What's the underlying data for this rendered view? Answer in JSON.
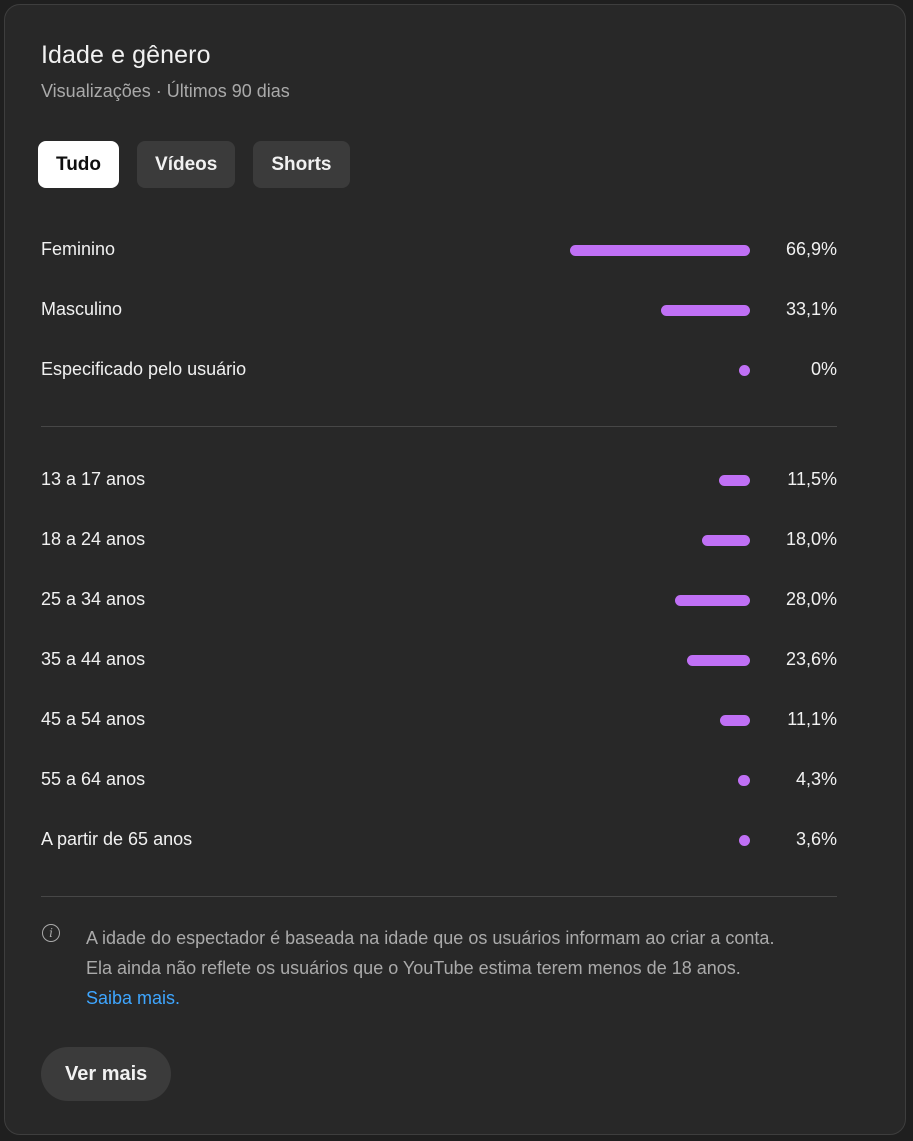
{
  "header": {
    "title": "Idade e gênero",
    "subtitle": "Visualizações · Últimos 90 dias"
  },
  "tabs": [
    {
      "label": "Tudo",
      "active": true
    },
    {
      "label": "Vídeos",
      "active": false
    },
    {
      "label": "Shorts",
      "active": false
    }
  ],
  "gender": [
    {
      "label": "Feminino",
      "value": "66,9%",
      "percent": 66.9
    },
    {
      "label": "Masculino",
      "value": "33,1%",
      "percent": 33.1
    },
    {
      "label": "Especificado pelo usuário",
      "value": "0%",
      "percent": 0
    }
  ],
  "age": [
    {
      "label": "13 a 17 anos",
      "value": "11,5%",
      "percent": 11.5
    },
    {
      "label": "18 a 24 anos",
      "value": "18,0%",
      "percent": 18.0
    },
    {
      "label": "25 a 34 anos",
      "value": "28,0%",
      "percent": 28.0
    },
    {
      "label": "35 a 44 anos",
      "value": "23,6%",
      "percent": 23.6
    },
    {
      "label": "45 a 54 anos",
      "value": "11,1%",
      "percent": 11.1
    },
    {
      "label": "55 a 64 anos",
      "value": "4,3%",
      "percent": 4.3
    },
    {
      "label": "A partir de 65 anos",
      "value": "3,6%",
      "percent": 3.6
    }
  ],
  "note": {
    "line1": "A idade do espectador é baseada na idade que os usuários informam ao criar a conta.",
    "line2": "Ela ainda não reflete os usuários que o YouTube estima terem menos de 18 anos.",
    "link": "Saiba mais."
  },
  "more_button": "Ver mais",
  "colors": {
    "bar": "#c070f5",
    "card_bg": "#282828",
    "link": "#3ea6ff"
  },
  "icons": {
    "info": "info-icon"
  }
}
